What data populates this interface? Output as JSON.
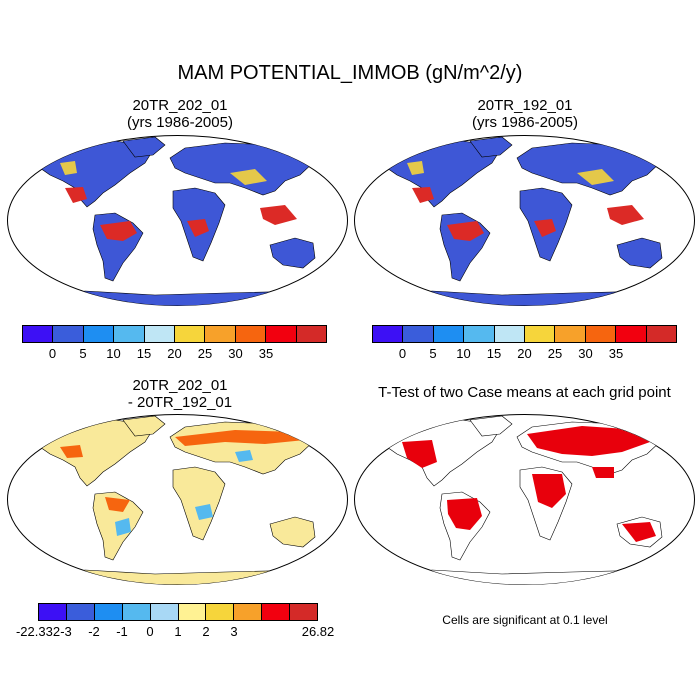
{
  "main_title": "MAM POTENTIAL_IMMOB (gN/m^2/y)",
  "panels": {
    "top_left": {
      "title_line1": "20TR_202_01",
      "title_line2": "(yrs 1986-2005)"
    },
    "top_right": {
      "title_line1": "20TR_192_01",
      "title_line2": "(yrs 1986-2005)"
    },
    "bottom_left": {
      "title_line1": "20TR_202_01",
      "title_line2": "- 20TR_192_01"
    },
    "bottom_right": {
      "title_line1": "T-Test of two Case means at each grid point"
    }
  },
  "colorbar_top": {
    "colors": [
      "#3d10f5",
      "#3a5ddb",
      "#1e8ef2",
      "#55b9ef",
      "#bfe6f5",
      "#f6d53b",
      "#f7a12a",
      "#f6650f",
      "#f2000f",
      "#d42a28"
    ],
    "labels": [
      "0",
      "5",
      "10",
      "15",
      "20",
      "25",
      "30",
      "35"
    ]
  },
  "colorbar_diff": {
    "colors": [
      "#3d10f5",
      "#3a5ddb",
      "#1e8ef2",
      "#55b9ef",
      "#a8d8f5",
      "#fff293",
      "#f6d53b",
      "#f7a12a",
      "#f2000f",
      "#d42a28"
    ],
    "labels": [
      "-22.332",
      "-3",
      "-2",
      "-1",
      "0",
      "1",
      "2",
      "3",
      "26.82"
    ]
  },
  "significance_note": "Cells are significant at 0.1 level",
  "map_colors": {
    "ocean": "#ffffff",
    "base_land": "#3e57d6",
    "tropics": "#dc2a26",
    "diff_land": "#f9e99a",
    "ttest_sig": "#e8000c"
  }
}
